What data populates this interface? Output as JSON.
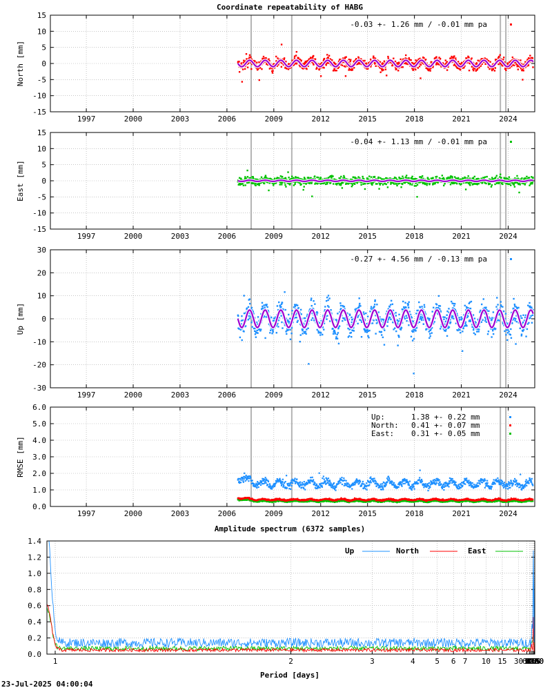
{
  "title": "Coordinate repeatability of HABG",
  "footer_timestamp": "23-Jul-2025 04:00:04",
  "colors": {
    "north": "#ff0000",
    "east": "#00c000",
    "up": "#1e90ff",
    "model": "#a000d0",
    "event_line": "#b4b4b4",
    "grid": "#a0a0a0"
  },
  "chart_data": [
    {
      "type": "scatter",
      "panel": "north",
      "ylabel": "North [mm]",
      "ylim": [
        -15,
        15
      ],
      "yticks": [
        -15,
        -10,
        -5,
        0,
        5,
        10,
        15
      ],
      "xlim": [
        1994.7,
        2025.7
      ],
      "xticks": [
        1997,
        2000,
        2003,
        2006,
        2009,
        2012,
        2015,
        2018,
        2021,
        2024
      ],
      "data_start": 2006.7,
      "data_end": 2025.6,
      "noise_sigma": 1.26,
      "seasonal_amplitude": 1.0,
      "event_lines": [
        2007.55,
        2010.15,
        2023.5,
        2023.85
      ],
      "annotation": "-0.03 +- 1.26 mm / -0.01 mm pa",
      "color_key": "north"
    },
    {
      "type": "scatter",
      "panel": "east",
      "ylabel": "East [mm]",
      "ylim": [
        -15,
        15
      ],
      "yticks": [
        -15,
        -10,
        -5,
        0,
        5,
        10,
        15
      ],
      "xlim": [
        1994.7,
        2025.7
      ],
      "xticks": [
        1997,
        2000,
        2003,
        2006,
        2009,
        2012,
        2015,
        2018,
        2021,
        2024
      ],
      "data_start": 2006.7,
      "data_end": 2025.6,
      "noise_sigma": 1.13,
      "seasonal_amplitude": 0.2,
      "event_lines": [
        2007.55,
        2010.15,
        2023.5,
        2023.85
      ],
      "annotation": "-0.04 +- 1.13 mm / -0.01 mm pa",
      "color_key": "east"
    },
    {
      "type": "scatter",
      "panel": "up",
      "ylabel": "Up [mm]",
      "ylim": [
        -30,
        30
      ],
      "yticks": [
        -30,
        -20,
        -10,
        0,
        10,
        20,
        30
      ],
      "xlim": [
        1994.7,
        2025.7
      ],
      "xticks": [
        1997,
        2000,
        2003,
        2006,
        2009,
        2012,
        2015,
        2018,
        2021,
        2024
      ],
      "data_start": 2006.7,
      "data_end": 2025.6,
      "noise_sigma": 4.56,
      "seasonal_amplitude": 3.8,
      "event_lines": [
        2007.55,
        2010.15,
        2023.5,
        2023.85
      ],
      "annotation": "-0.27 +- 4.56 mm / -0.13 mm pa",
      "color_key": "up"
    },
    {
      "type": "scatter",
      "panel": "rmse",
      "ylabel": "RMSE [mm]",
      "ylim": [
        0,
        6
      ],
      "yticks": [
        "0.0",
        "1.0",
        "2.0",
        "3.0",
        "4.0",
        "5.0",
        "6.0"
      ],
      "xlim": [
        1994.7,
        2025.7
      ],
      "xticks": [
        1997,
        2000,
        2003,
        2006,
        2009,
        2012,
        2015,
        2018,
        2021,
        2024
      ],
      "data_start": 2006.7,
      "data_end": 2025.6,
      "event_lines": [
        2007.55,
        2010.15,
        2023.5,
        2023.85
      ],
      "legend": [
        {
          "name": "Up:",
          "value": "1.38 +- 0.22 mm",
          "mean": 1.38,
          "color_key": "up"
        },
        {
          "name": "North:",
          "value": "0.41 +- 0.07 mm",
          "mean": 0.41,
          "color_key": "north"
        },
        {
          "name": "East:",
          "value": "0.31 +- 0.05 mm",
          "mean": 0.31,
          "color_key": "east"
        }
      ]
    },
    {
      "type": "line",
      "panel": "spectrum",
      "title": "Amplitude spectrum (6372 samples)",
      "xlabel": "Period [days]",
      "xscale": "reciprocal",
      "ylim": [
        0,
        1.4
      ],
      "yticks": [
        "0.0",
        "0.2",
        "0.4",
        "0.6",
        "0.8",
        "1.0",
        "1.2",
        "1.4"
      ],
      "xticks": [
        1,
        2,
        3,
        4,
        5,
        6,
        7,
        10,
        15,
        30,
        61,
        91,
        122,
        183,
        365,
        730,
        2190,
        4380,
        8760
      ],
      "xtick_labels": [
        "1",
        "2",
        "3",
        "4",
        "5",
        "6",
        "7",
        "10",
        "15",
        "30",
        "61",
        "91",
        "122",
        "183",
        "365",
        "730",
        "2190",
        "4380",
        "8760"
      ],
      "series": [
        {
          "name": "Up",
          "color_key": "up",
          "floor": 0.14,
          "peaks": [
            {
              "period": 365,
              "amp": 1.3
            },
            {
              "period": 1.0,
              "amp": 1.4
            },
            {
              "period": 183,
              "amp": 0.35
            },
            {
              "period": 6500,
              "amp": 1.0
            },
            {
              "period": 1500,
              "amp": 0.52
            }
          ]
        },
        {
          "name": "North",
          "color_key": "north",
          "floor": 0.05,
          "peaks": [
            {
              "period": 365,
              "amp": 0.62
            },
            {
              "period": 1.0,
              "amp": 0.62
            },
            {
              "period": 3500,
              "amp": 0.3
            }
          ]
        },
        {
          "name": "East",
          "color_key": "east",
          "floor": 0.07,
          "peaks": [
            {
              "period": 365,
              "amp": 0.2
            },
            {
              "period": 1.0,
              "amp": 0.5
            },
            {
              "period": 3000,
              "amp": 0.25
            }
          ]
        }
      ]
    }
  ]
}
